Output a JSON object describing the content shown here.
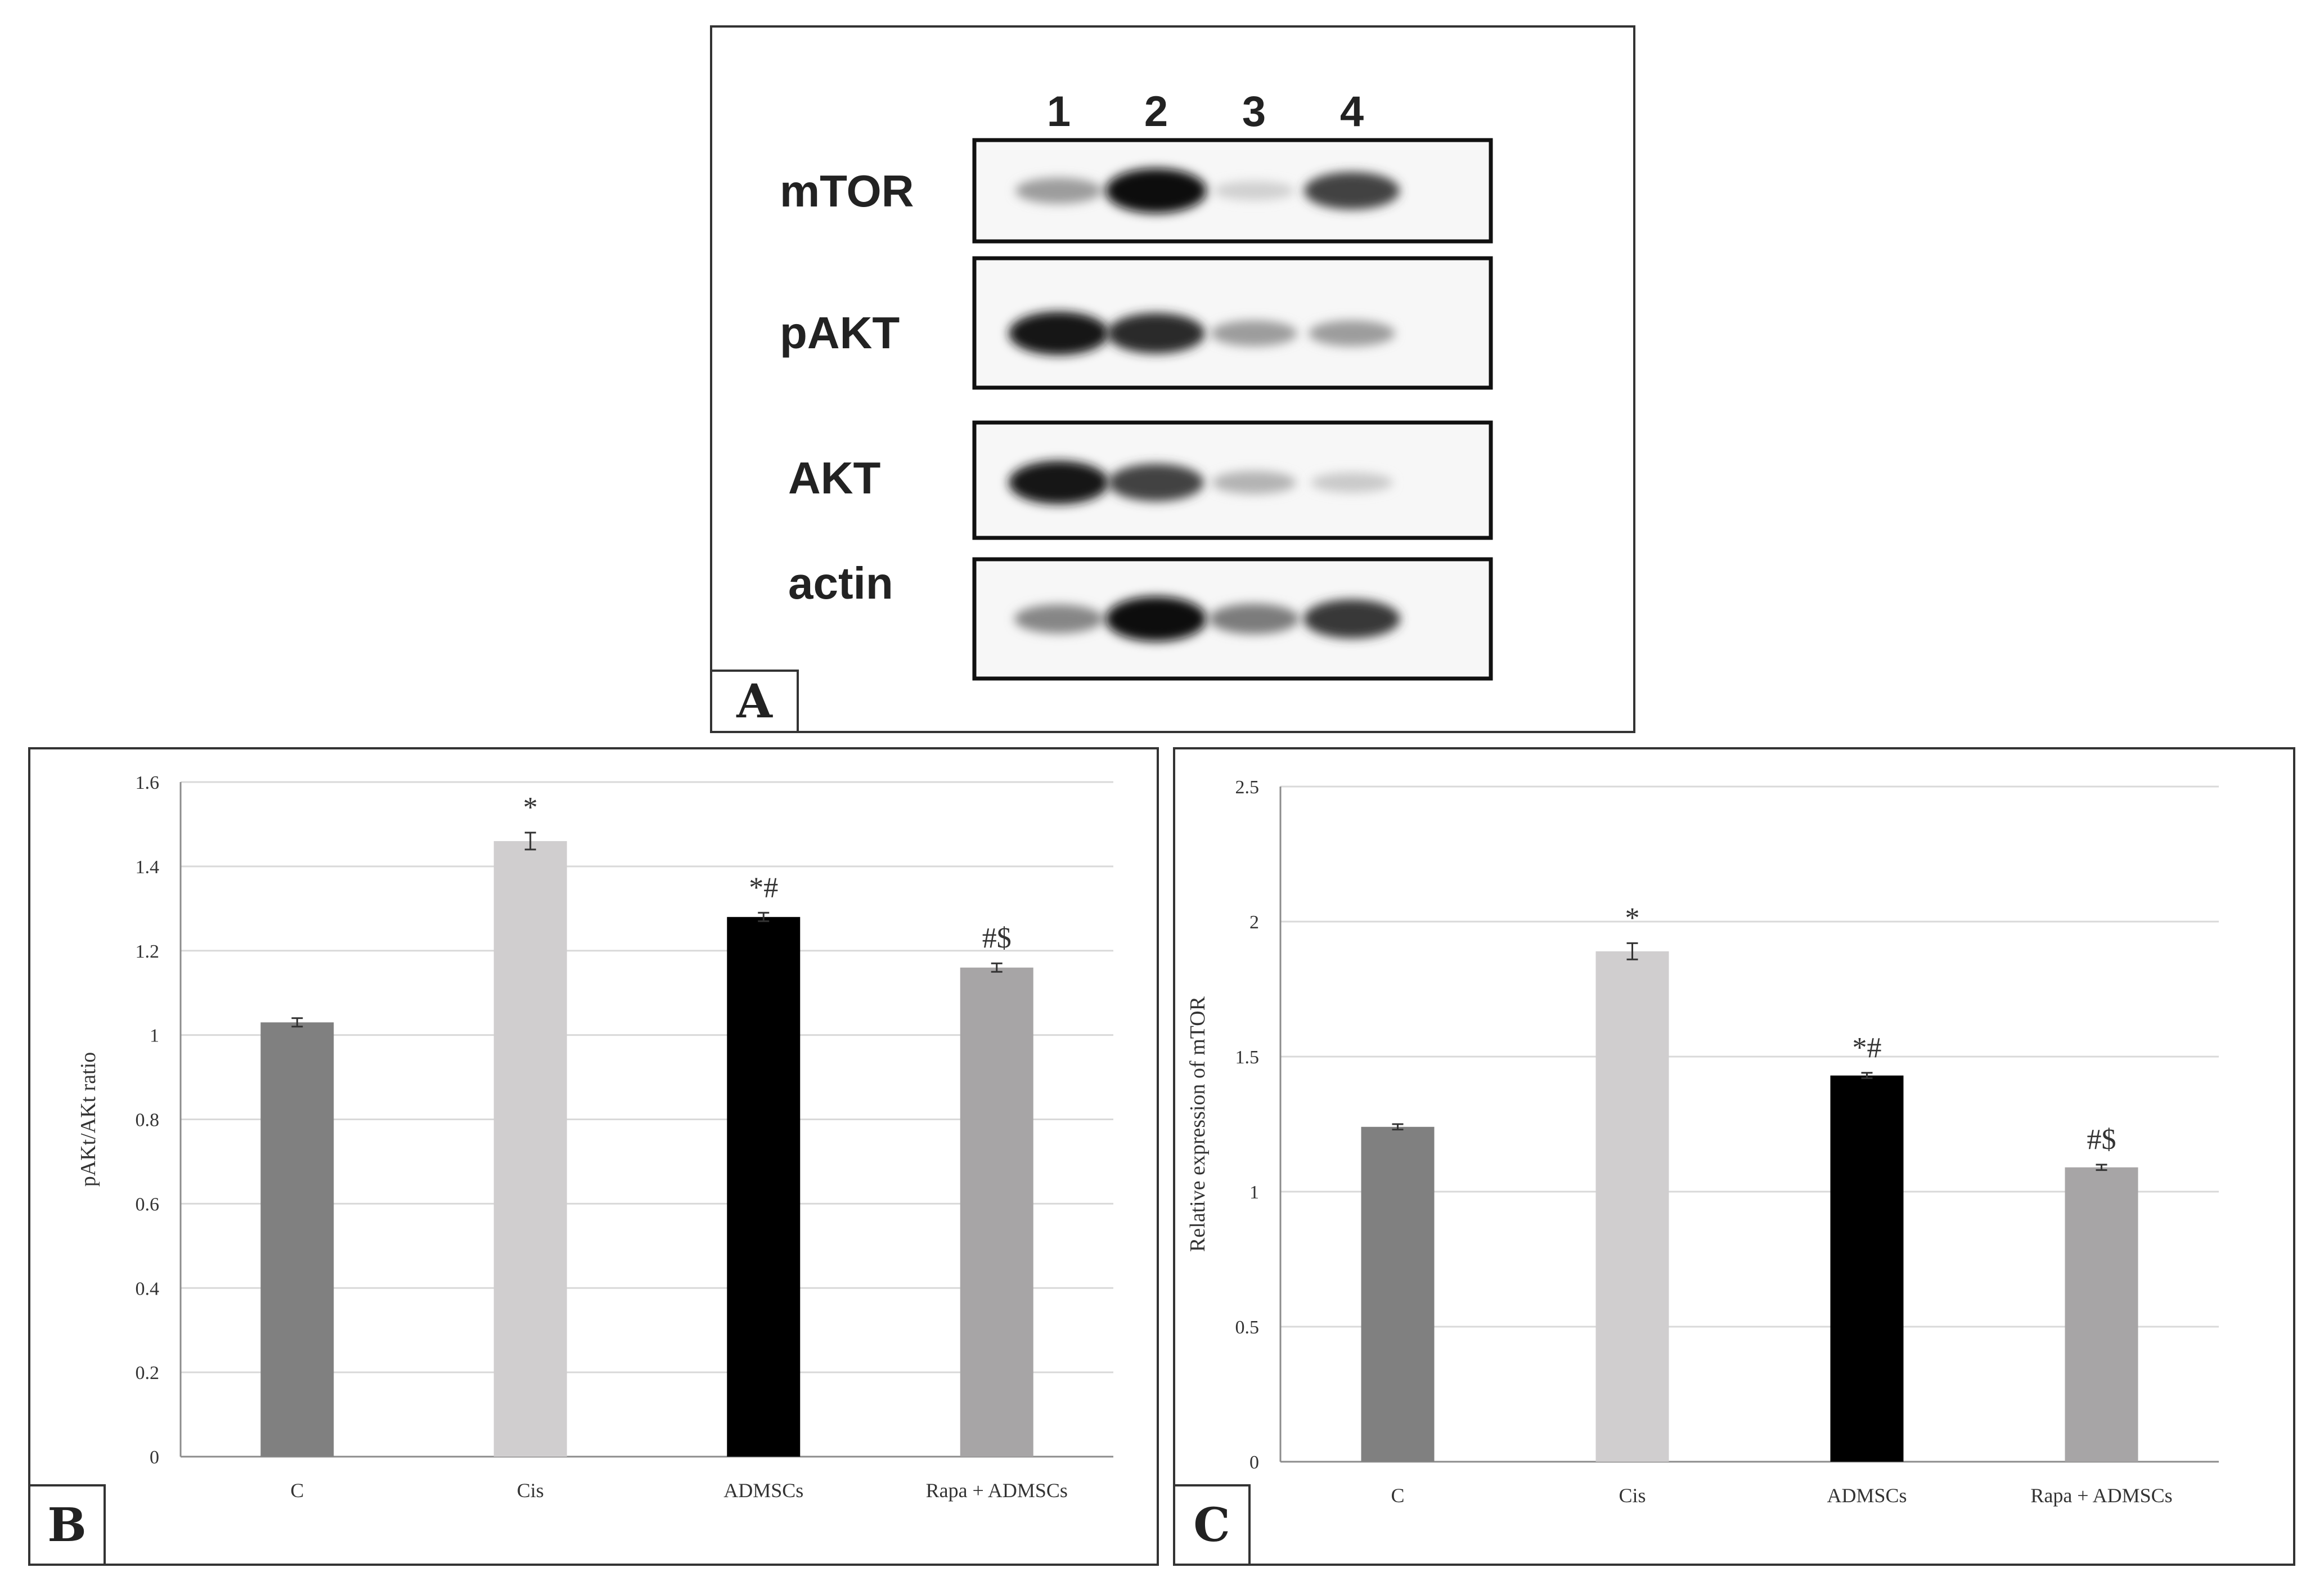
{
  "panel_tags": {
    "a": "A",
    "b": "B",
    "c": "C"
  },
  "blot": {
    "lanes": [
      "1",
      "2",
      "3",
      "4"
    ],
    "rows": [
      {
        "label": "mTOR",
        "intensity": [
          0.35,
          1.0,
          0.12,
          0.75
        ]
      },
      {
        "label": "pAKT",
        "intensity": [
          0.95,
          0.85,
          0.35,
          0.35
        ]
      },
      {
        "label": "AKT",
        "intensity": [
          0.95,
          0.75,
          0.25,
          0.15
        ]
      },
      {
        "label": "actin",
        "intensity": [
          0.45,
          1.0,
          0.5,
          0.8
        ]
      }
    ]
  },
  "colors": {
    "c": "#808080",
    "cis": "#d0cecf",
    "admscs": "#000000",
    "rapa": "#a7a5a6",
    "grid": "#d9d9d9"
  },
  "chart_data": [
    {
      "type": "bar",
      "categories": [
        "C",
        "Cis",
        "ADMSCs",
        "Rapa + ADMSCs"
      ],
      "values": [
        1.03,
        1.46,
        1.28,
        1.16
      ],
      "errors": [
        0.01,
        0.02,
        0.01,
        0.01
      ],
      "annotations": [
        "",
        "*",
        "*#",
        "#$"
      ],
      "ylabel": "pAKt/AKt ratio",
      "ylim": [
        0,
        1.6
      ],
      "yticks": [
        "0",
        "0.2",
        "0.4",
        "0.6",
        "0.8",
        "1",
        "1.2",
        "1.4",
        "1.6"
      ],
      "grid": true
    },
    {
      "type": "bar",
      "categories": [
        "C",
        "Cis",
        "ADMSCs",
        "Rapa + ADMSCs"
      ],
      "values": [
        1.24,
        1.89,
        1.43,
        1.09
      ],
      "errors": [
        0.01,
        0.03,
        0.01,
        0.01
      ],
      "annotations": [
        "",
        "*",
        "*#",
        "#$"
      ],
      "ylabel": "Relative expression of mTOR",
      "ylim": [
        0,
        2.5
      ],
      "yticks": [
        "0",
        "0.5",
        "1",
        "1.5",
        "2",
        "2.5"
      ],
      "grid": true
    }
  ]
}
